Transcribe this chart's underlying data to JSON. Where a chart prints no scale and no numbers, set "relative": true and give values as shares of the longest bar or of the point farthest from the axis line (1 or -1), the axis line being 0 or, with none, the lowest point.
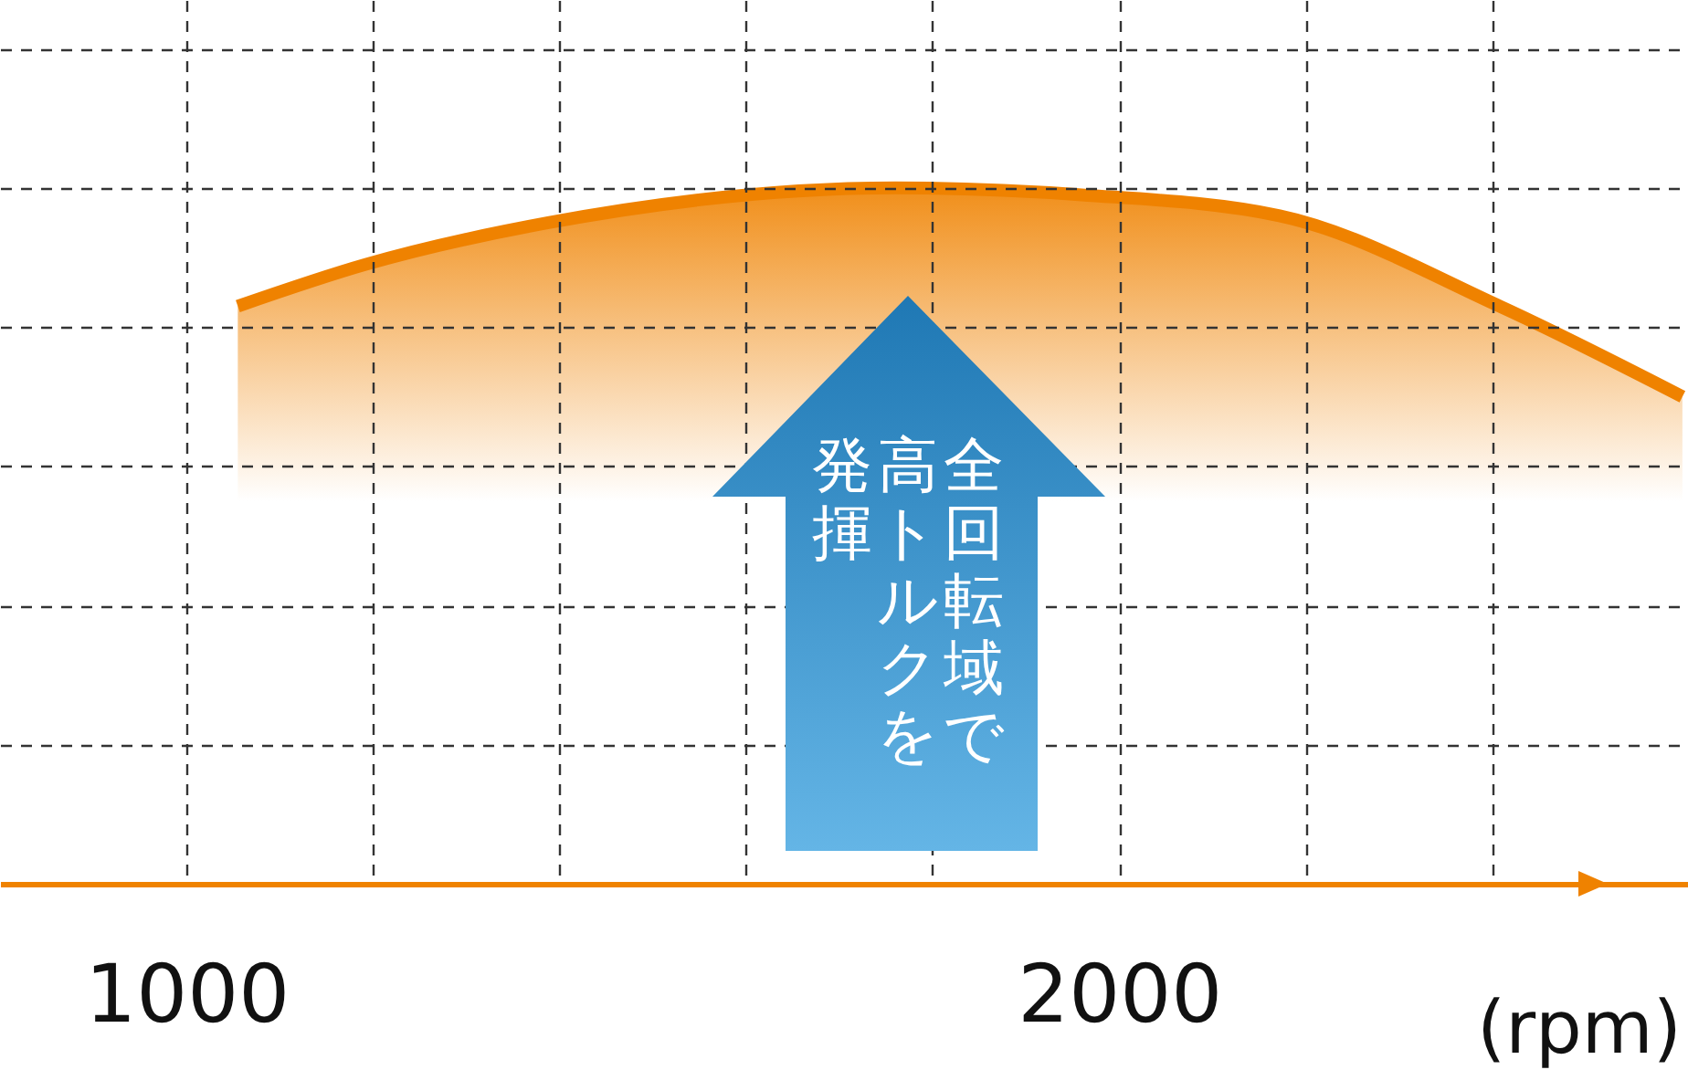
{
  "chart_data": {
    "type": "area",
    "relative": true,
    "xlabel": "(rpm)",
    "x": [
      1055,
      1192,
      1388,
      1760,
      1960,
      2172,
      2408,
      2604
    ],
    "series": [
      {
        "color": "#ef8200",
        "values": [
          0.83,
          0.89,
          0.95,
          1,
          0.99,
          0.96,
          0.83,
          0.7
        ]
      }
    ],
    "xlim": [
      800,
      2610
    ],
    "xticks": [
      1000,
      {
        "value": 1200,
        "label": null
      },
      {
        "value": 1400,
        "label": null
      },
      {
        "value": 1600,
        "label": null
      },
      {
        "value": 1800,
        "label": null
      },
      2000,
      {
        "value": 2200,
        "label": null
      },
      {
        "value": 2400,
        "label": null
      }
    ],
    "grid": true,
    "annotations": [
      "全回転域で",
      "高トルクを",
      "発揮"
    ]
  }
}
